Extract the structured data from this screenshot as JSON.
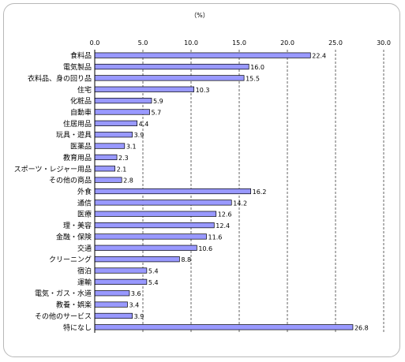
{
  "chart_data": {
    "type": "bar",
    "orientation": "horizontal",
    "unit_label": "（%）",
    "xlim": [
      0,
      30
    ],
    "x_ticks": [
      "0.0",
      "5.0",
      "10.0",
      "15.0",
      "20.0",
      "25.0",
      "30.0"
    ],
    "grid": "vertical dashed",
    "bar_color": "#9999ff",
    "categories": [
      "食料品",
      "電気製品",
      "衣料品、身の回り品",
      "住宅",
      "化粧品",
      "自動車",
      "住居用品",
      "玩具・遊具",
      "医薬品",
      "教育用品",
      "スポーツ・レジャー用品",
      "その他の商品",
      "外食",
      "通信",
      "医療",
      "理・美容",
      "金融・保険",
      "交通",
      "クリーニング",
      "宿泊",
      "運輸",
      "電気・ガス・水道",
      "教養・娯楽",
      "その他のサービス",
      "特になし"
    ],
    "values": [
      22.4,
      16.0,
      15.5,
      10.3,
      5.9,
      5.7,
      4.4,
      3.9,
      3.1,
      2.3,
      2.1,
      2.8,
      16.2,
      14.2,
      12.6,
      12.4,
      11.6,
      10.6,
      8.8,
      5.4,
      5.4,
      3.6,
      3.4,
      3.9,
      26.8
    ],
    "value_labels": [
      "22.4",
      "16.0",
      "15.5",
      "10.3",
      "5.9",
      "5.7",
      "4.4",
      "3.9",
      "3.1",
      "2.3",
      "2.1",
      "2.8",
      "16.2",
      "14.2",
      "12.6",
      "12.4",
      "11.6",
      "10.6",
      "8.8",
      "5.4",
      "5.4",
      "3.6",
      "3.4",
      "3.9",
      "26.8"
    ]
  }
}
